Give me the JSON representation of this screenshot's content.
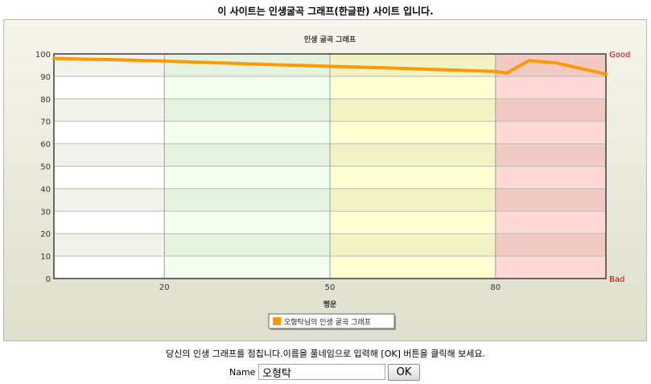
{
  "page": {
    "title": "이 사이트는 인생굴곡 그래프(한글판) 사이트 입니다.",
    "instruction": "당신의 인생 그래프를 점칩니다.이름을 풀네임으로 입력해 [OK] 버튼을 클릭해 보세요.",
    "name_label": "Name",
    "name_value": "오형탁",
    "ok_label": "OK"
  },
  "chart_data": {
    "type": "line",
    "title": "인생 굴곡 그래프",
    "xlabel": "행운",
    "ylabel": "",
    "xlim": [
      0,
      100
    ],
    "ylim": [
      0,
      100
    ],
    "x_ticks": [
      "20",
      "50",
      "80"
    ],
    "x_tick_values": [
      20,
      50,
      80
    ],
    "y_ticks": [
      "0",
      "10",
      "20",
      "30",
      "40",
      "50",
      "60",
      "70",
      "80",
      "90",
      "100"
    ],
    "top_label": "Good",
    "bottom_label": "Bad",
    "grid": true,
    "legend_position": "bottom",
    "bands": [
      {
        "from": 0,
        "to": 20,
        "colors": [
          "#ffffff",
          "#f2f2ec"
        ]
      },
      {
        "from": 20,
        "to": 50,
        "colors": [
          "#f1fff1",
          "#e4f2e0"
        ]
      },
      {
        "from": 50,
        "to": 80,
        "colors": [
          "#ffffd2",
          "#f2f2c5"
        ]
      },
      {
        "from": 80,
        "to": 100,
        "colors": [
          "#ffd8d8",
          "#f2cac5"
        ]
      }
    ],
    "series": [
      {
        "name": "오형탁님의 인생 굴곡 그래프",
        "color": "#ff9900",
        "x": [
          0,
          10,
          20,
          30,
          40,
          50,
          60,
          70,
          80,
          82,
          86,
          91,
          100
        ],
        "y": [
          98,
          97.5,
          96.8,
          96,
          95.2,
          94.5,
          93.8,
          93,
          92.2,
          91.5,
          97,
          96,
          91
        ]
      }
    ]
  }
}
